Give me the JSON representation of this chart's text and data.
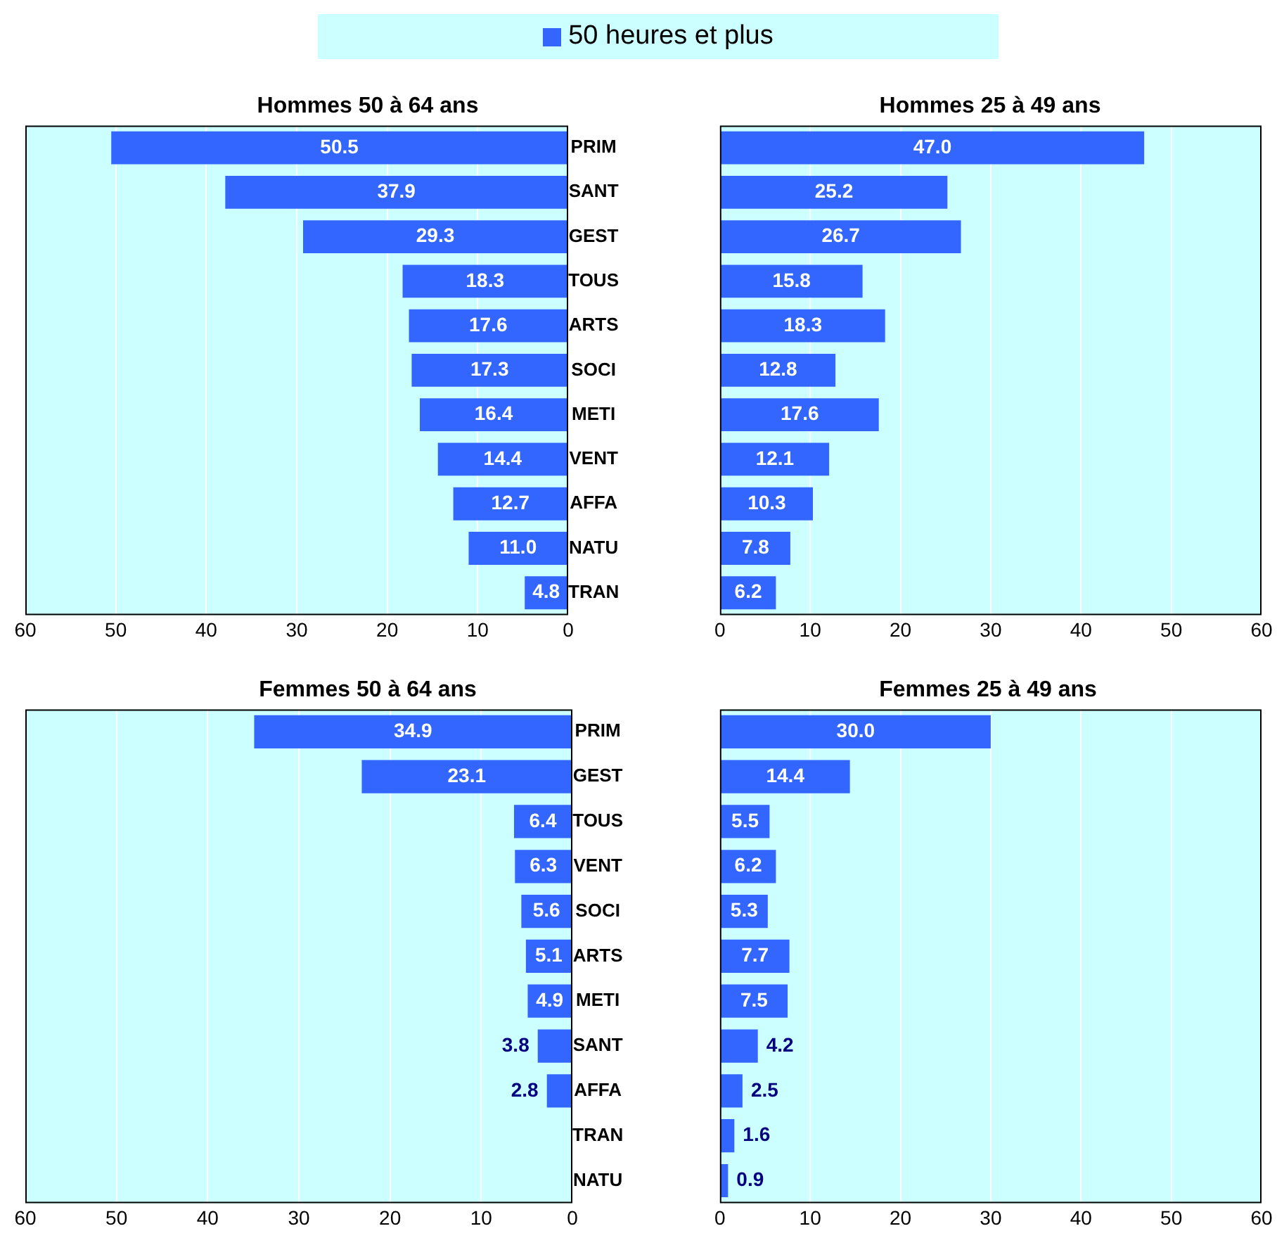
{
  "chart_data": [
    {
      "type": "bar",
      "orientation": "horizontal",
      "title": "Hommes 50 à 64 ans",
      "legend": "top",
      "categories": [
        "PRIM",
        "SANT",
        "GEST",
        "TOUS",
        "ARTS",
        "SOCI",
        "METI",
        "VENT",
        "AFFA",
        "NATU",
        "TRAN"
      ],
      "series": [
        {
          "name": "50 heures et plus",
          "color": "#3366ff",
          "values": [
            50.5,
            37.9,
            29.3,
            18.3,
            17.6,
            17.3,
            16.4,
            14.4,
            12.7,
            11.0,
            4.8
          ],
          "value_labels": [
            "50.5",
            "37.9",
            "29.3",
            "18.3",
            "17.6",
            "17.3",
            "16.4",
            "14.4",
            "12.7",
            "11.0",
            "4.8"
          ]
        }
      ],
      "xlim": [
        60,
        0
      ],
      "xticks": [
        60,
        50,
        40,
        30,
        20,
        10,
        0
      ],
      "grid": "x"
    },
    {
      "type": "bar",
      "orientation": "horizontal",
      "title": "Hommes 25 à 49 ans",
      "categories": [
        null,
        null,
        null,
        null,
        null,
        null,
        null,
        null,
        null,
        null,
        null
      ],
      "series": [
        {
          "color": "#3366ff",
          "values": [
            47.0,
            25.2,
            26.7,
            15.8,
            18.3,
            12.8,
            17.6,
            12.1,
            10.3,
            7.8,
            6.2
          ],
          "value_labels": [
            "47.0",
            "25.2",
            "26.7",
            "15.8",
            "18.3",
            "12.8",
            "17.6",
            "12.1",
            "10.3",
            "7.8",
            "6.2"
          ]
        }
      ],
      "xlim": [
        0,
        60
      ],
      "xticks": [
        0,
        10,
        20,
        30,
        40,
        50,
        60
      ],
      "grid": "x",
      "tick_labels": "x"
    },
    {
      "type": "bar",
      "orientation": "horizontal",
      "title": "Femmes 50 à 64 ans",
      "categories": [
        "PRIM",
        "GEST",
        "TOUS",
        "VENT",
        "SOCI",
        "ARTS",
        "METI",
        "SANT",
        "AFFA",
        "TRAN",
        "NATU"
      ],
      "series": [
        {
          "color": "#3366ff",
          "values": [
            34.9,
            23.1,
            6.4,
            6.3,
            5.6,
            5.1,
            4.9,
            3.8,
            2.8,
            null,
            null
          ],
          "value_labels": [
            "34.9",
            "23.1",
            "6.4",
            "6.3",
            "5.6",
            "5.1",
            "4.9",
            "3.8",
            "2.8",
            null,
            null
          ]
        }
      ],
      "xlim": [
        60,
        0
      ],
      "xticks": [
        60,
        50,
        40,
        30,
        20,
        10,
        0
      ],
      "grid": "x"
    },
    {
      "type": "bar",
      "orientation": "horizontal",
      "title": "Femmes 25 à 49 ans",
      "categories": [
        null,
        null,
        null,
        null,
        null,
        null,
        null,
        null,
        null,
        null,
        null
      ],
      "series": [
        {
          "color": "#3366ff",
          "values": [
            30.0,
            14.4,
            5.5,
            6.2,
            5.3,
            7.7,
            7.5,
            4.2,
            2.5,
            1.6,
            0.9
          ],
          "value_labels": [
            "30.0",
            "14.4",
            "5.5",
            "6.2",
            "5.3",
            "7.7",
            "7.5",
            "4.2",
            "2.5",
            "1.6",
            "0.9"
          ]
        }
      ],
      "xlim": [
        0,
        60
      ],
      "xticks": [
        0,
        10,
        20,
        30,
        40,
        50,
        60
      ],
      "grid": "x",
      "tick_labels": "x"
    }
  ]
}
